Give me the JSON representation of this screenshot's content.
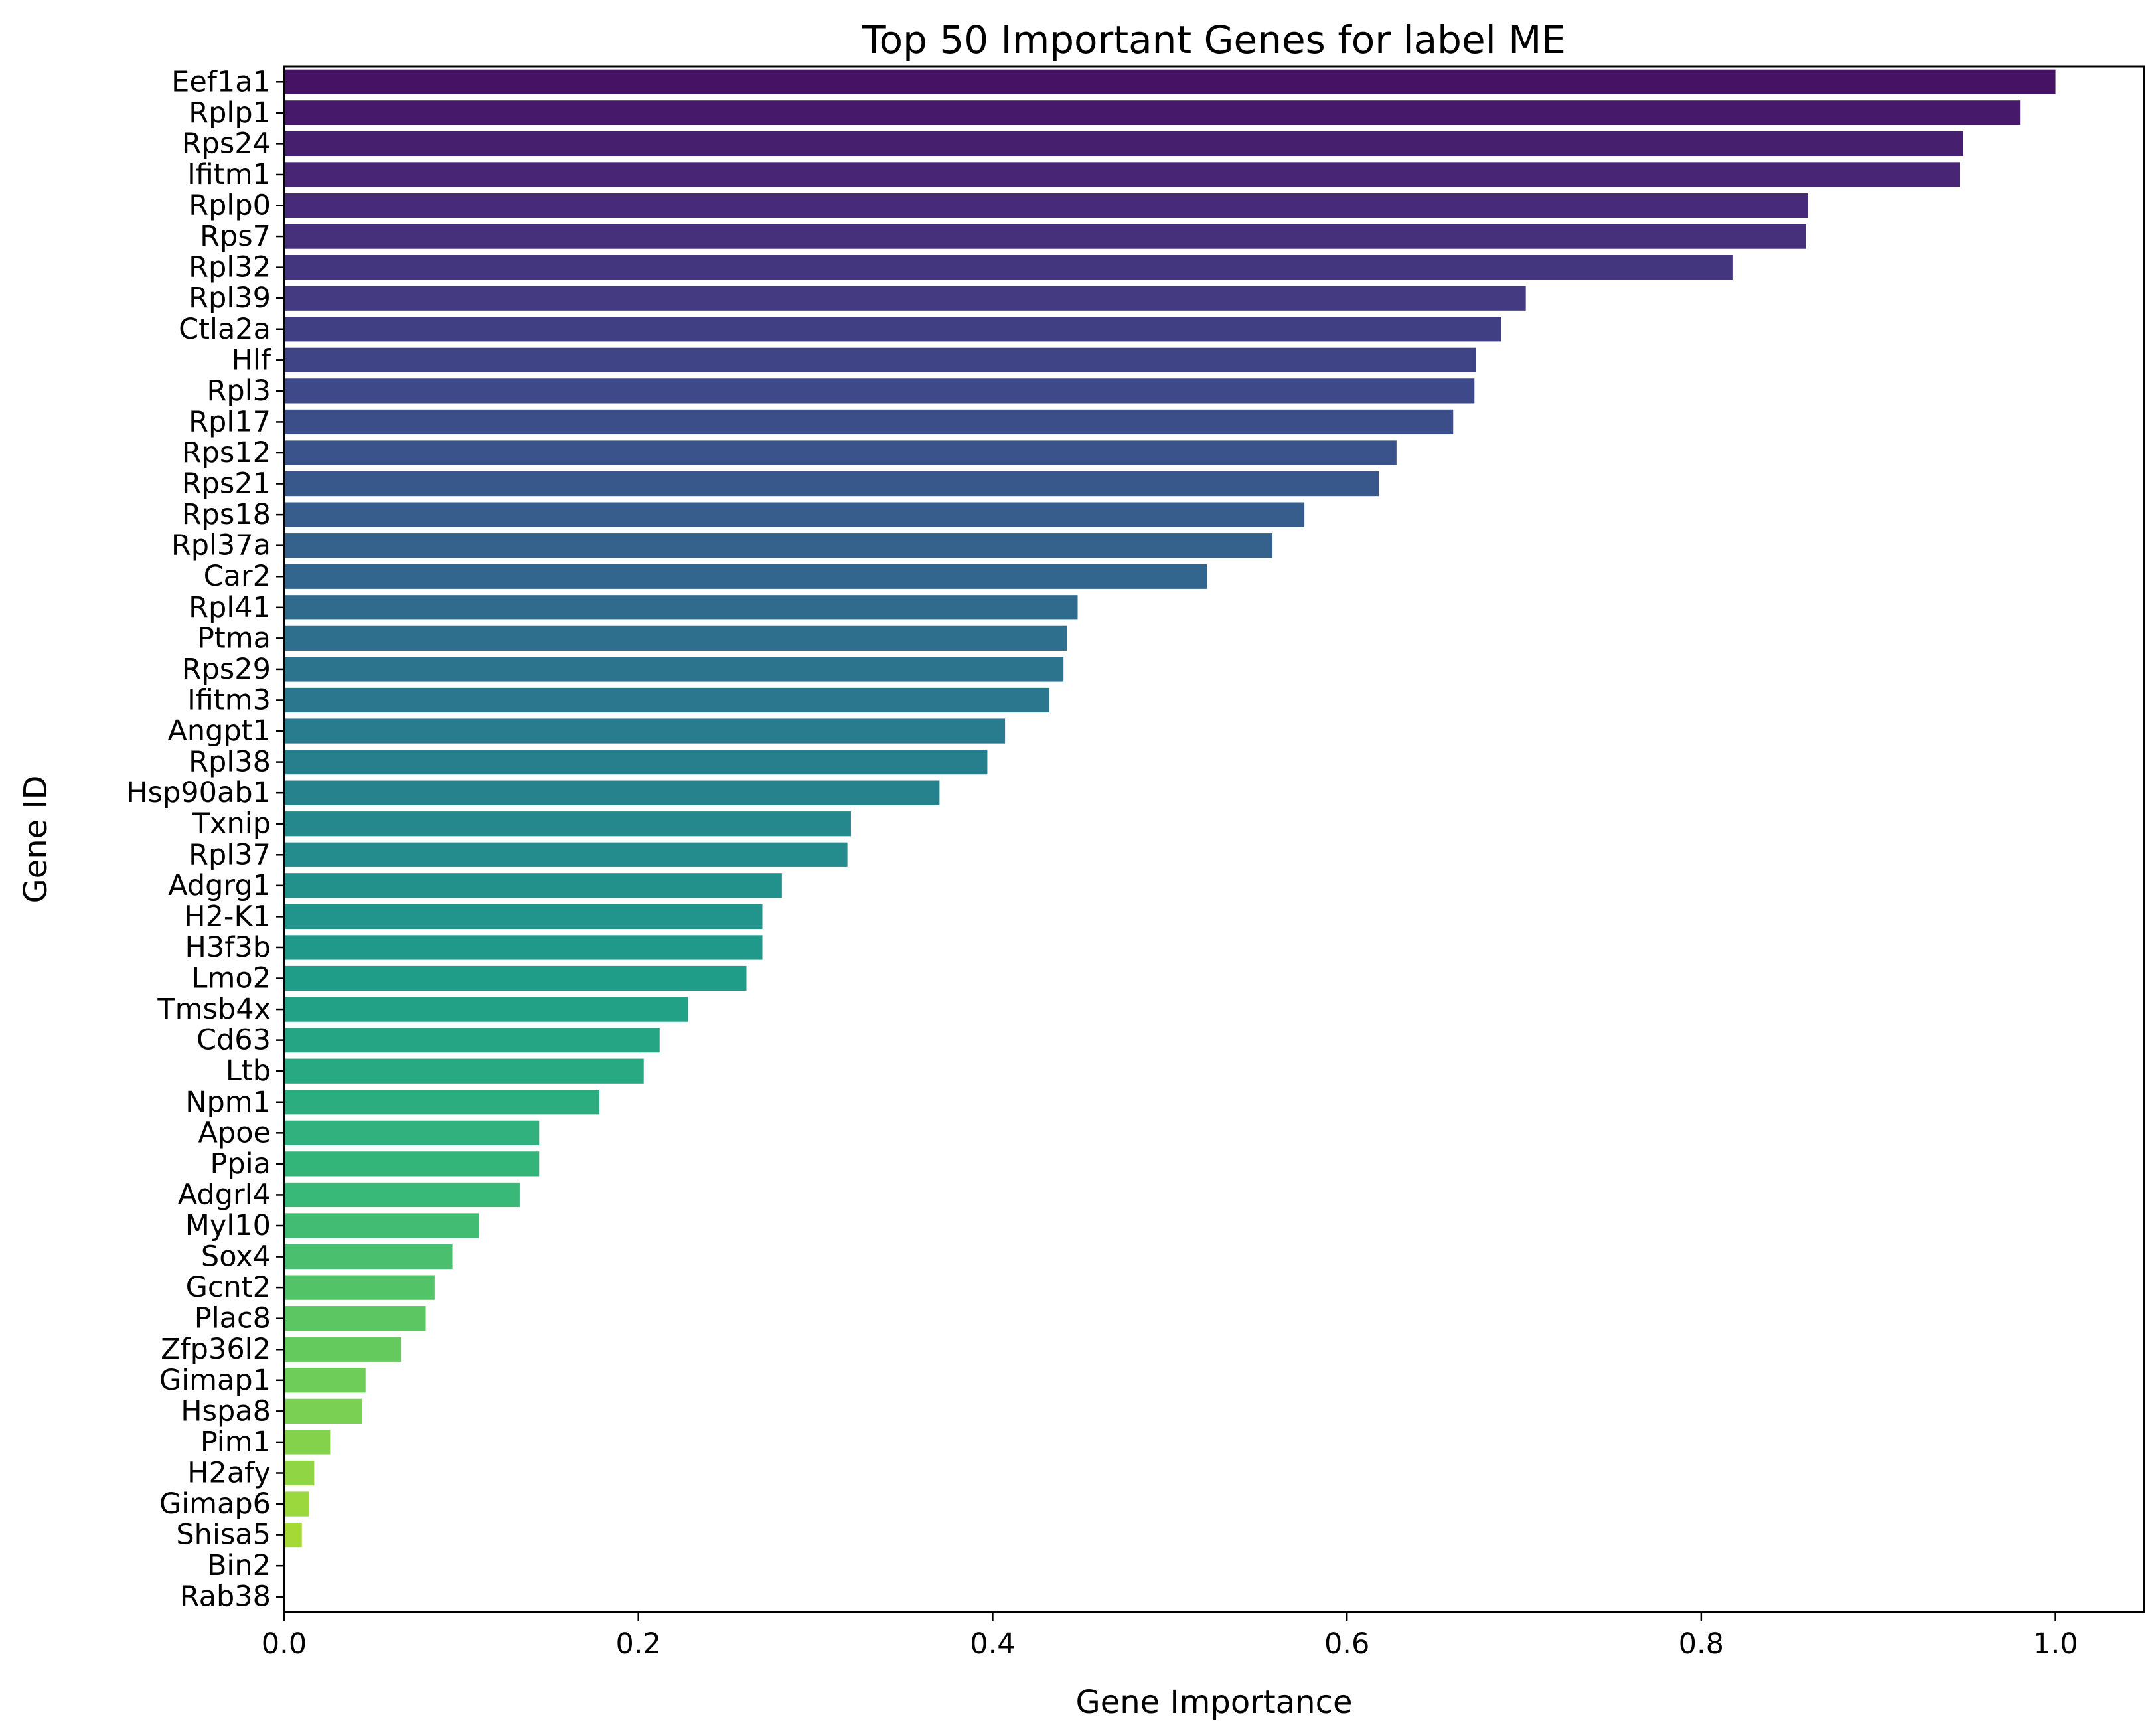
{
  "chart_data": {
    "type": "bar",
    "orientation": "horizontal",
    "title": "Top 50 Important Genes for label ME",
    "xlabel": "Gene Importance",
    "ylabel": "Gene ID",
    "xlim": [
      0,
      1.05
    ],
    "xticks": [
      "0.0",
      "0.2",
      "0.4",
      "0.6",
      "0.8",
      "1.0"
    ],
    "xtick_values": [
      0,
      0.2,
      0.4,
      0.6,
      0.8,
      1.0
    ],
    "grid": false,
    "legend": "none",
    "palette": "viridis",
    "categories": [
      "Eef1a1",
      "Rplp1",
      "Rps24",
      "Ifitm1",
      "Rplp0",
      "Rps7",
      "Rpl32",
      "Rpl39",
      "Ctla2a",
      "Hlf",
      "Rpl3",
      "Rpl17",
      "Rps12",
      "Rps21",
      "Rps18",
      "Rpl37a",
      "Car2",
      "Rpl41",
      "Ptma",
      "Rps29",
      "Ifitm3",
      "Angpt1",
      "Rpl38",
      "Hsp90ab1",
      "Txnip",
      "Rpl37",
      "Adgrg1",
      "H2-K1",
      "H3f3b",
      "Lmo2",
      "Tmsb4x",
      "Cd63",
      "Ltb",
      "Npm1",
      "Apoe",
      "Ppia",
      "Adgrl4",
      "Myl10",
      "Sox4",
      "Gcnt2",
      "Plac8",
      "Zfp36l2",
      "Gimap1",
      "Hspa8",
      "Pim1",
      "H2afy",
      "Gimap6",
      "Shisa5",
      "Bin2",
      "Rab38"
    ],
    "values": [
      1.0,
      0.98,
      0.948,
      0.946,
      0.86,
      0.859,
      0.818,
      0.701,
      0.687,
      0.673,
      0.672,
      0.66,
      0.628,
      0.618,
      0.576,
      0.558,
      0.521,
      0.448,
      0.442,
      0.44,
      0.432,
      0.407,
      0.397,
      0.37,
      0.32,
      0.318,
      0.281,
      0.27,
      0.27,
      0.261,
      0.228,
      0.212,
      0.203,
      0.178,
      0.144,
      0.144,
      0.133,
      0.11,
      0.095,
      0.085,
      0.08,
      0.066,
      0.046,
      0.044,
      0.026,
      0.017,
      0.014,
      0.01,
      0.0,
      0.0
    ]
  }
}
